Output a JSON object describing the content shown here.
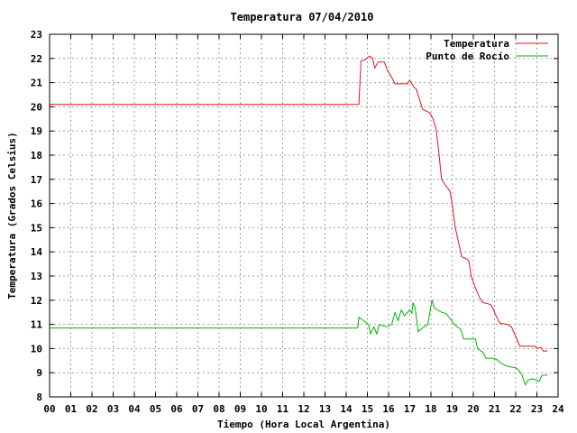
{
  "chart_data": {
    "type": "line",
    "title": "Temperatura 07/04/2010",
    "xlabel": "Tiempo (Hora Local Argentina)",
    "ylabel": "Temperatura (Grados Celsius)",
    "xlim": [
      0,
      24
    ],
    "ylim": [
      8,
      23
    ],
    "x_ticks": [
      "00",
      "01",
      "02",
      "03",
      "04",
      "05",
      "06",
      "07",
      "08",
      "09",
      "10",
      "11",
      "12",
      "13",
      "14",
      "15",
      "16",
      "17",
      "18",
      "19",
      "20",
      "21",
      "22",
      "23",
      "24"
    ],
    "y_ticks": [
      "8",
      "9",
      "10",
      "11",
      "12",
      "13",
      "14",
      "15",
      "16",
      "17",
      "18",
      "19",
      "20",
      "21",
      "22",
      "23"
    ],
    "grid": true,
    "legend_position": "top-right",
    "series": [
      {
        "name": "Temperatura",
        "color": "#e0141e",
        "points": [
          [
            0,
            20.1
          ],
          [
            14.5,
            20.1
          ],
          [
            14.6,
            20.1
          ],
          [
            14.7,
            21.9
          ],
          [
            14.9,
            21.95
          ],
          [
            15.1,
            22.1
          ],
          [
            15.25,
            22.0
          ],
          [
            15.35,
            21.6
          ],
          [
            15.5,
            21.85
          ],
          [
            15.8,
            21.85
          ],
          [
            15.95,
            21.5
          ],
          [
            16.1,
            21.3
          ],
          [
            16.3,
            20.95
          ],
          [
            16.6,
            20.95
          ],
          [
            16.9,
            20.95
          ],
          [
            17.0,
            21.1
          ],
          [
            17.2,
            20.8
          ],
          [
            17.3,
            20.75
          ],
          [
            17.5,
            20.2
          ],
          [
            17.6,
            19.9
          ],
          [
            17.95,
            19.75
          ],
          [
            18.1,
            19.5
          ],
          [
            18.25,
            19.05
          ],
          [
            18.35,
            18.3
          ],
          [
            18.5,
            17.0
          ],
          [
            18.7,
            16.75
          ],
          [
            18.9,
            16.5
          ],
          [
            19.0,
            16.0
          ],
          [
            19.15,
            15.0
          ],
          [
            19.3,
            14.4
          ],
          [
            19.45,
            13.8
          ],
          [
            19.7,
            13.7
          ],
          [
            19.8,
            13.6
          ],
          [
            19.9,
            13.0
          ],
          [
            20.1,
            12.5
          ],
          [
            20.3,
            12.1
          ],
          [
            20.45,
            11.9
          ],
          [
            20.7,
            11.85
          ],
          [
            20.85,
            11.8
          ],
          [
            21.0,
            11.5
          ],
          [
            21.25,
            11.05
          ],
          [
            21.6,
            11.0
          ],
          [
            21.8,
            10.9
          ],
          [
            22.0,
            10.5
          ],
          [
            22.2,
            10.1
          ],
          [
            22.6,
            10.1
          ],
          [
            22.9,
            10.1
          ],
          [
            23.0,
            10.0
          ],
          [
            23.2,
            10.05
          ],
          [
            23.3,
            9.9
          ],
          [
            23.5,
            9.9
          ]
        ]
      },
      {
        "name": "Punto de Rocío",
        "color": "#00b400",
        "points": [
          [
            0,
            10.85
          ],
          [
            14.55,
            10.85
          ],
          [
            14.6,
            11.3
          ],
          [
            14.9,
            11.1
          ],
          [
            15.05,
            11.0
          ],
          [
            15.15,
            10.6
          ],
          [
            15.3,
            10.9
          ],
          [
            15.45,
            10.6
          ],
          [
            15.55,
            11.0
          ],
          [
            15.9,
            10.9
          ],
          [
            16.15,
            11.0
          ],
          [
            16.3,
            11.5
          ],
          [
            16.45,
            11.15
          ],
          [
            16.6,
            11.6
          ],
          [
            16.75,
            11.35
          ],
          [
            17.0,
            11.6
          ],
          [
            17.1,
            11.45
          ],
          [
            17.15,
            11.9
          ],
          [
            17.25,
            11.7
          ],
          [
            17.4,
            10.7
          ],
          [
            17.6,
            10.85
          ],
          [
            17.85,
            11.0
          ],
          [
            17.95,
            11.5
          ],
          [
            18.05,
            12.0
          ],
          [
            18.15,
            11.7
          ],
          [
            18.3,
            11.6
          ],
          [
            18.5,
            11.5
          ],
          [
            18.7,
            11.45
          ],
          [
            18.85,
            11.3
          ],
          [
            19.1,
            11.0
          ],
          [
            19.25,
            10.9
          ],
          [
            19.4,
            10.8
          ],
          [
            19.55,
            10.4
          ],
          [
            19.8,
            10.4
          ],
          [
            20.1,
            10.4
          ],
          [
            20.2,
            10.0
          ],
          [
            20.45,
            9.85
          ],
          [
            20.6,
            9.6
          ],
          [
            20.9,
            9.6
          ],
          [
            21.1,
            9.55
          ],
          [
            21.3,
            9.4
          ],
          [
            21.5,
            9.3
          ],
          [
            21.7,
            9.25
          ],
          [
            22.0,
            9.2
          ],
          [
            22.15,
            9.1
          ],
          [
            22.3,
            8.9
          ],
          [
            22.45,
            8.5
          ],
          [
            22.6,
            8.7
          ],
          [
            22.8,
            8.75
          ],
          [
            22.95,
            8.7
          ],
          [
            23.1,
            8.65
          ],
          [
            23.25,
            8.9
          ],
          [
            23.5,
            8.9
          ]
        ]
      }
    ]
  }
}
